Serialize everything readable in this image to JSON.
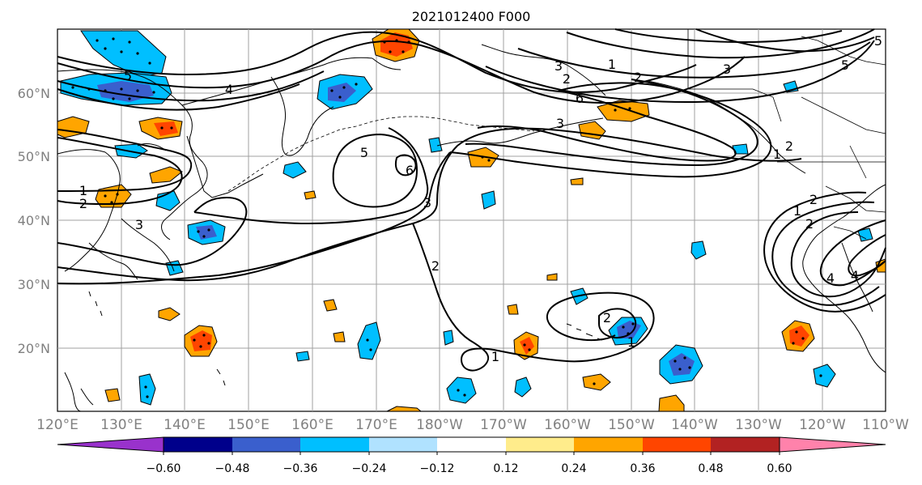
{
  "title": "2021012400 F000",
  "map": {
    "lat_labels": [
      "60°N",
      "50°N",
      "40°N",
      "30°N",
      "20°N"
    ],
    "lon_labels": [
      "120°E",
      "130°E",
      "140°E",
      "150°E",
      "160°E",
      "170°E",
      "180°W",
      "170°W",
      "160°W",
      "150°W",
      "140°W",
      "130°W",
      "120°W",
      "110°W"
    ],
    "contour_labels": [
      "1",
      "2",
      "3",
      "4",
      "5",
      "6",
      "1",
      "2",
      "3",
      "4",
      "5",
      "6",
      "3",
      "2",
      "1",
      "3",
      "2",
      "1",
      "1",
      "2",
      "5",
      "2",
      "2",
      "1",
      "2",
      "4",
      "3",
      "5"
    ]
  },
  "colorbar": {
    "colors": [
      "#9932cc",
      "#00008b",
      "#3a5fcd",
      "#00bfff",
      "#b0e2ff",
      "#ffffff",
      "#ffffff",
      "#ffec8b",
      "#ffa500",
      "#ff4500",
      "#b22222",
      "#ff82ab"
    ],
    "tick_labels": [
      "−0.60",
      "−0.48",
      "−0.36",
      "−0.24",
      "−0.12",
      "0.12",
      "0.24",
      "0.36",
      "0.48",
      "0.60"
    ]
  }
}
